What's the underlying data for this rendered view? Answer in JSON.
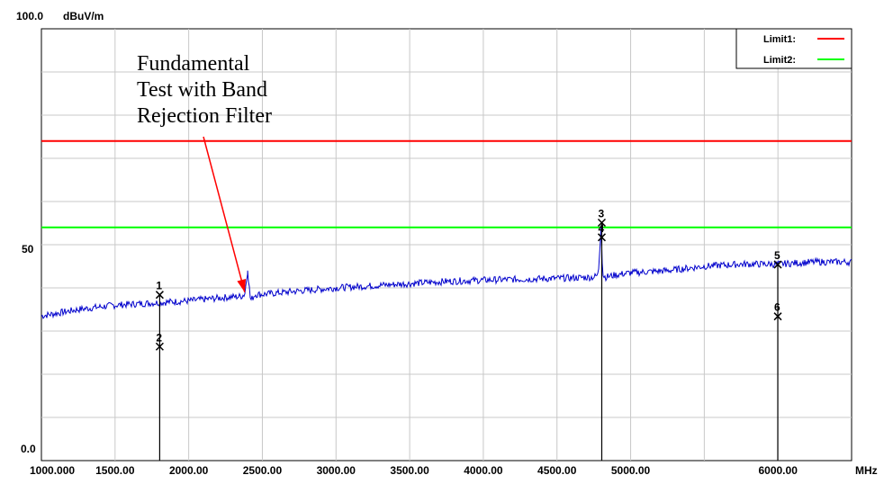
{
  "chart_data": {
    "type": "line",
    "ylabel": "dBuV/m",
    "ylim": [
      0,
      100
    ],
    "y_ticks": [
      {
        "value": 100,
        "label": "100.0"
      },
      {
        "value": 50,
        "label": "50"
      },
      {
        "value": 0,
        "label": "0.0"
      }
    ],
    "xlim": [
      1000,
      6500
    ],
    "x_ticks": [
      {
        "value": 1000,
        "label": "1000.000"
      },
      {
        "value": 1500,
        "label": "1500.00"
      },
      {
        "value": 2000,
        "label": "2000.00"
      },
      {
        "value": 2500,
        "label": "2500.00"
      },
      {
        "value": 3000,
        "label": "3000.00"
      },
      {
        "value": 3500,
        "label": "3500.00"
      },
      {
        "value": 4000,
        "label": "4000.00"
      },
      {
        "value": 4500,
        "label": "4500.00"
      },
      {
        "value": 5000,
        "label": "5000.00"
      },
      {
        "value": 6000,
        "label": "6000.00"
      }
    ],
    "x_unit": "MHz",
    "grid": true,
    "legend_position": "top-right",
    "limits": [
      {
        "name": "Limit1:",
        "value": 74,
        "color": "#ff0000"
      },
      {
        "name": "Limit2:",
        "value": 54,
        "color": "#00ff00"
      }
    ],
    "series": [
      {
        "color": "#0000cc",
        "x": [
          1000,
          1250,
          1500,
          1750,
          2000,
          2250,
          2350,
          2380,
          2400,
          2420,
          2450,
          2500,
          2750,
          3000,
          3250,
          3500,
          3750,
          4000,
          4250,
          4500,
          4750,
          4780,
          4800,
          4810,
          4830,
          4900,
          5000,
          5250,
          5500,
          5750,
          6000,
          6250,
          6500
        ],
        "y": [
          33.5,
          35,
          36,
          36.5,
          37,
          37.8,
          38,
          38.5,
          44,
          37,
          38.5,
          38.5,
          39.3,
          40,
          40.5,
          41,
          41.5,
          41.8,
          42,
          42.2,
          42.5,
          43,
          54.5,
          43,
          42.5,
          43,
          43.5,
          44,
          45,
          45.5,
          45.5,
          46,
          46
        ]
      }
    ],
    "markers": [
      {
        "label": "1",
        "x": 1803,
        "y": 38.4
      },
      {
        "label": "2",
        "x": 1803,
        "y": 26.4
      },
      {
        "label": "3",
        "x": 4804,
        "y": 55.1
      },
      {
        "label": "4",
        "x": 4804,
        "y": 51.7
      },
      {
        "label": "5",
        "x": 5999,
        "y": 45.4
      },
      {
        "label": "6",
        "x": 5999,
        "y": 33.4
      }
    ],
    "annotation": {
      "lines": [
        "Fundamental",
        "Test with Band",
        "Rejection Filter"
      ],
      "arrow_color": "#ff0000",
      "target": {
        "x": 2380,
        "y": 39
      }
    }
  }
}
